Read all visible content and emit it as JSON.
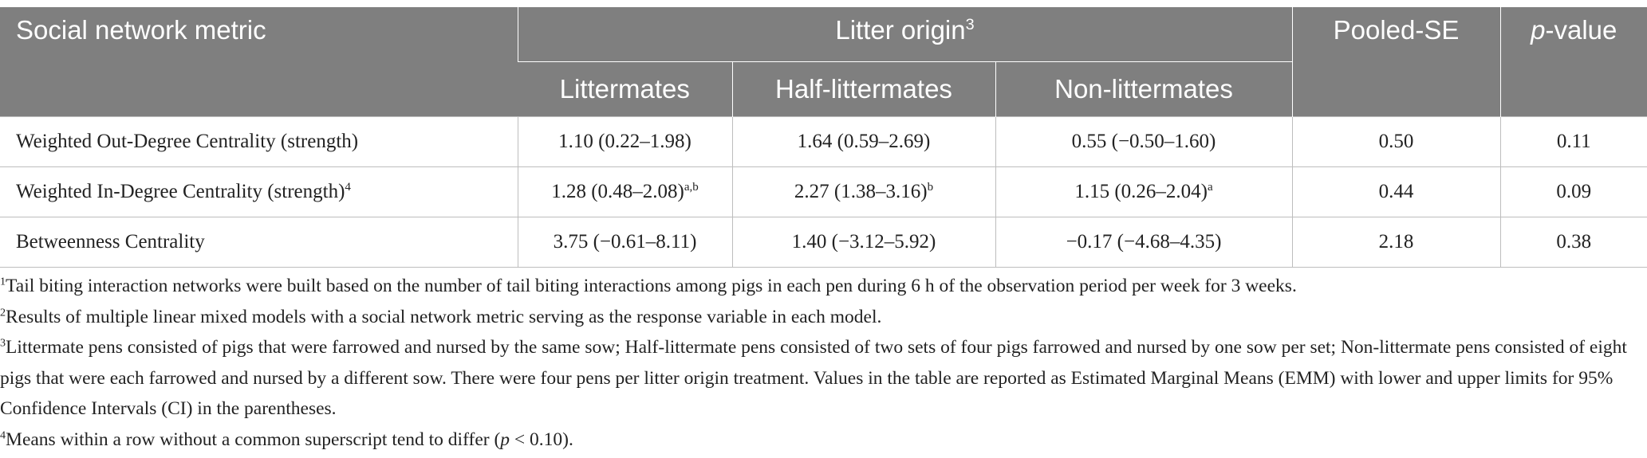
{
  "table": {
    "header": {
      "metric": "Social network metric",
      "litter_origin": {
        "text": "Litter origin",
        "sup": "3"
      },
      "pooled_se": "Pooled-SE",
      "p_value": {
        "italic": "p",
        "text": "-value"
      },
      "subheaders": [
        "Littermates",
        "Half-littermates",
        "Non-littermates"
      ]
    },
    "rows": [
      {
        "metric": {
          "text": "Weighted Out-Degree Centrality (strength)"
        },
        "cells": [
          {
            "text": "1.10 (0.22–1.98)"
          },
          {
            "text": "1.64 (0.59–2.69)"
          },
          {
            "text": "0.55 (−0.50–1.60)"
          },
          {
            "text": "0.50"
          },
          {
            "text": "0.11"
          }
        ]
      },
      {
        "metric": {
          "text": "Weighted In-Degree Centrality (strength)",
          "sup": "4"
        },
        "cells": [
          {
            "text": "1.28 (0.48–2.08)",
            "sup": "a,b"
          },
          {
            "text": "2.27 (1.38–3.16)",
            "sup": "b"
          },
          {
            "text": "1.15 (0.26–2.04)",
            "sup": "a"
          },
          {
            "text": "0.44"
          },
          {
            "text": "0.09"
          }
        ]
      },
      {
        "metric": {
          "text": "Betweenness Centrality"
        },
        "cells": [
          {
            "text": "3.75 (−0.61–8.11)"
          },
          {
            "text": "1.40 (−3.12–5.92)"
          },
          {
            "text": "−0.17 (−4.68–4.35)"
          },
          {
            "text": "2.18"
          },
          {
            "text": "0.38"
          }
        ]
      }
    ]
  },
  "footnotes": [
    {
      "sup": "1",
      "text": "Tail biting interaction networks were built based on the number of tail biting interactions among pigs in each pen during 6 h of the observation period per week for 3 weeks."
    },
    {
      "sup": "2",
      "text": "Results of multiple linear mixed models with a social network metric serving as the response variable in each model."
    },
    {
      "sup": "3",
      "text": "Littermate pens consisted of pigs that were farrowed and nursed by the same sow; Half-littermate pens consisted of two sets of four pigs farrowed and nursed by one sow per set; Non-littermate pens consisted of eight pigs that were each farrowed and nursed by a different sow. There were four pens per litter origin treatment. Values in the table are reported as Estimated Marginal Means (EMM) with lower and upper limits for 95% Confidence Intervals (CI) in the parentheses."
    },
    {
      "sup": "4",
      "text": "Means within a row without a common superscript tend to differ (",
      "italic": "p",
      "after": " < 0.10)."
    }
  ]
}
